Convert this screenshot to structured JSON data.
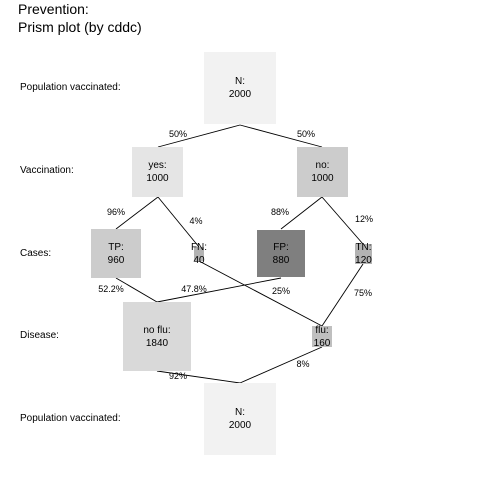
{
  "title": {
    "line1": "Prevention:",
    "line2": "Prism plot (by cddc)"
  },
  "row_labels": {
    "top": "Population vaccinated:",
    "vaccination": "Vaccination:",
    "cases": "Cases:",
    "disease": "Disease:",
    "bottom": "Population vaccinated:"
  },
  "nodes": {
    "n_top": {
      "label": "N:",
      "value": "2000"
    },
    "yes": {
      "label": "yes:",
      "value": "1000"
    },
    "no": {
      "label": "no:",
      "value": "1000"
    },
    "tp": {
      "label": "TP:",
      "value": "960"
    },
    "fn": {
      "label": "FN:",
      "value": "40"
    },
    "fp": {
      "label": "FP:",
      "value": "880"
    },
    "tn": {
      "label": "TN:",
      "value": "120"
    },
    "no_flu": {
      "label": "no flu:",
      "value": "1840"
    },
    "flu": {
      "label": "flu:",
      "value": "160"
    },
    "n_bottom": {
      "label": "N:",
      "value": "2000"
    }
  },
  "percentages": {
    "n_yes": "50%",
    "n_no": "50%",
    "yes_tp": "96%",
    "yes_fn": "4%",
    "no_fp": "88%",
    "no_tn": "12%",
    "tp_noflu": "52.2%",
    "fp_noflu": "47.8%",
    "fn_flu": "25%",
    "tn_flu": "75%",
    "noflu_n": "92%",
    "flu_n": "8%"
  },
  "colors": {
    "n": "#f2f2f2",
    "yes": "#e5e5e5",
    "no": "#cccccc",
    "tp": "#cccccc",
    "fn": "#b3b3b3",
    "fp": "#7f7f7f",
    "tn": "#b3b3b3",
    "no_flu": "#d9d9d9",
    "flu": "#bfbfbf",
    "line": "#000000"
  }
}
